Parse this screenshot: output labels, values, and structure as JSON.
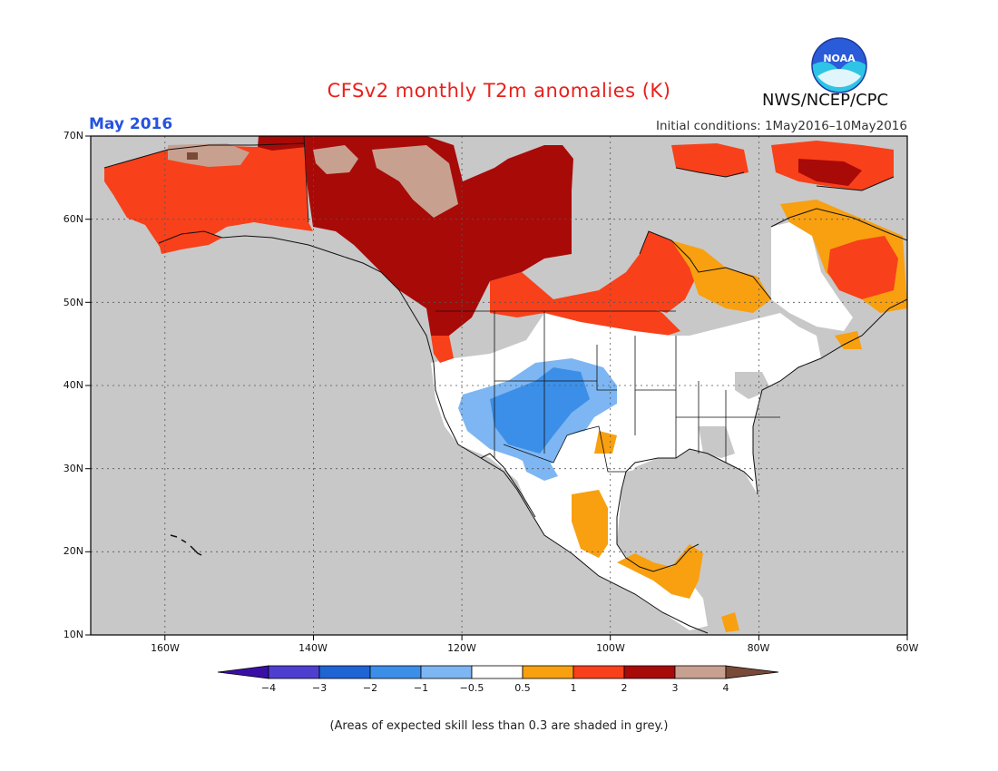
{
  "header": {
    "title": "CFSv2 monthly T2m anomalies (K)",
    "month": "May 2016",
    "initial_conditions": "Initial conditions: 1May2016–10May2016",
    "org": "NWS/NCEP/CPC",
    "logo_text": "NOAA"
  },
  "axes": {
    "lat_labels": [
      "70N",
      "60N",
      "50N",
      "40N",
      "30N",
      "20N",
      "10N"
    ],
    "lon_labels": [
      "160W",
      "140W",
      "120W",
      "100W",
      "80W",
      "60W"
    ]
  },
  "colorbar": {
    "labels": [
      "−4",
      "−3",
      "−2",
      "−1",
      "−0.5",
      "0.5",
      "1",
      "2",
      "3",
      "4"
    ],
    "colors": [
      "#3a0fa5",
      "#4e3fd0",
      "#1f64d4",
      "#3c8fe8",
      "#7db6f2",
      "#ffffff",
      "#f8a010",
      "#f8401a",
      "#a80a08",
      "#c8a090",
      "#7a4a38"
    ]
  },
  "colors": {
    "no_skill": "#c8c8c8",
    "ocean": "#c8c8c8"
  },
  "footnote": "(Areas of expected skill less than 0.3 are shaded in grey.)"
}
